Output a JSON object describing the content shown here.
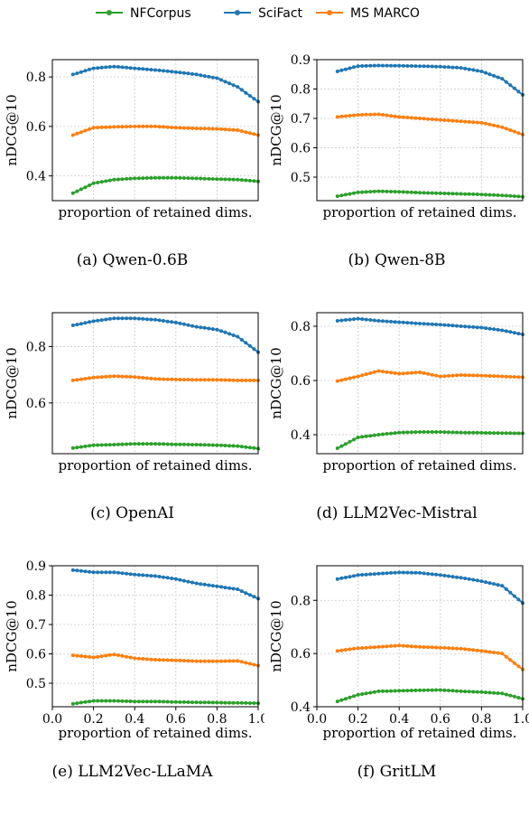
{
  "legend": [
    {
      "name": "NFCorpus",
      "color": "#2ca02c"
    },
    {
      "name": "SciFact",
      "color": "#1f77b4"
    },
    {
      "name": "MS MARCO",
      "color": "#ff7f0e"
    }
  ],
  "chart_data": [
    {
      "type": "line",
      "caption": "(a) Qwen-0.6B",
      "xlabel": "proportion of retained dims.",
      "ylabel": "nDCG@10",
      "xlim": [
        0.0,
        1.0
      ],
      "ylim": [
        0.3,
        0.87
      ],
      "yticks": [
        0.4,
        0.6,
        0.8
      ],
      "ytick_labels": [
        "0.4",
        "0.6",
        "0.8"
      ],
      "xticks": [],
      "grid": true,
      "x": [
        0.1,
        0.2,
        0.3,
        0.4,
        0.5,
        0.6,
        0.7,
        0.8,
        0.9,
        1.0
      ],
      "series": [
        {
          "name": "NFCorpus",
          "values": [
            0.33,
            0.37,
            0.385,
            0.39,
            0.392,
            0.392,
            0.39,
            0.387,
            0.385,
            0.378
          ]
        },
        {
          "name": "SciFact",
          "values": [
            0.81,
            0.835,
            0.842,
            0.835,
            0.828,
            0.82,
            0.81,
            0.795,
            0.76,
            0.7
          ]
        },
        {
          "name": "MS MARCO",
          "values": [
            0.565,
            0.595,
            0.598,
            0.6,
            0.6,
            0.595,
            0.592,
            0.59,
            0.585,
            0.565
          ]
        }
      ]
    },
    {
      "type": "line",
      "caption": "(b) Qwen-8B",
      "xlabel": "proportion of retained dims.",
      "ylabel": "nDCG@10",
      "xlim": [
        0.0,
        1.0
      ],
      "ylim": [
        0.42,
        0.9
      ],
      "yticks": [
        0.5,
        0.6,
        0.7,
        0.8,
        0.9
      ],
      "ytick_labels": [
        "0.5",
        "0.6",
        "0.7",
        "0.8",
        "0.9"
      ],
      "xticks": [],
      "grid": true,
      "x": [
        0.1,
        0.2,
        0.3,
        0.4,
        0.5,
        0.6,
        0.7,
        0.8,
        0.9,
        1.0
      ],
      "series": [
        {
          "name": "NFCorpus",
          "values": [
            0.435,
            0.448,
            0.452,
            0.45,
            0.447,
            0.445,
            0.443,
            0.441,
            0.438,
            0.433
          ]
        },
        {
          "name": "SciFact",
          "values": [
            0.86,
            0.878,
            0.88,
            0.879,
            0.878,
            0.876,
            0.872,
            0.86,
            0.835,
            0.78
          ]
        },
        {
          "name": "MS MARCO",
          "values": [
            0.705,
            0.712,
            0.714,
            0.705,
            0.7,
            0.695,
            0.69,
            0.685,
            0.67,
            0.645
          ]
        }
      ]
    },
    {
      "type": "line",
      "caption": "(c) OpenAI",
      "xlabel": "proportion of retained dims.",
      "ylabel": "nDCG@10",
      "xlim": [
        0.0,
        1.0
      ],
      "ylim": [
        0.42,
        0.92
      ],
      "yticks": [
        0.6,
        0.8
      ],
      "ytick_labels": [
        "0.6",
        "0.8"
      ],
      "xticks": [],
      "grid": true,
      "x": [
        0.1,
        0.2,
        0.3,
        0.4,
        0.5,
        0.6,
        0.7,
        0.8,
        0.9,
        1.0
      ],
      "series": [
        {
          "name": "NFCorpus",
          "values": [
            0.44,
            0.45,
            0.452,
            0.455,
            0.455,
            0.453,
            0.452,
            0.45,
            0.447,
            0.438
          ]
        },
        {
          "name": "SciFact",
          "values": [
            0.875,
            0.89,
            0.9,
            0.9,
            0.895,
            0.885,
            0.87,
            0.86,
            0.835,
            0.78
          ]
        },
        {
          "name": "MS MARCO",
          "values": [
            0.68,
            0.69,
            0.695,
            0.692,
            0.685,
            0.683,
            0.682,
            0.682,
            0.68,
            0.68
          ]
        }
      ]
    },
    {
      "type": "line",
      "caption": "(d) LLM2Vec-Mistral",
      "xlabel": "proportion of retained dims.",
      "ylabel": "nDCG@10",
      "xlim": [
        0.0,
        1.0
      ],
      "ylim": [
        0.33,
        0.85
      ],
      "yticks": [
        0.4,
        0.6,
        0.8
      ],
      "ytick_labels": [
        "0.4",
        "0.6",
        "0.8"
      ],
      "xticks": [],
      "grid": true,
      "x": [
        0.1,
        0.2,
        0.3,
        0.4,
        0.5,
        0.6,
        0.7,
        0.8,
        0.9,
        1.0
      ],
      "series": [
        {
          "name": "NFCorpus",
          "values": [
            0.35,
            0.39,
            0.4,
            0.408,
            0.41,
            0.41,
            0.408,
            0.407,
            0.406,
            0.405
          ]
        },
        {
          "name": "SciFact",
          "values": [
            0.82,
            0.828,
            0.82,
            0.815,
            0.81,
            0.806,
            0.8,
            0.795,
            0.785,
            0.77
          ]
        },
        {
          "name": "MS MARCO",
          "values": [
            0.598,
            0.615,
            0.635,
            0.625,
            0.63,
            0.615,
            0.62,
            0.618,
            0.615,
            0.612
          ]
        }
      ]
    },
    {
      "type": "line",
      "caption": "(e) LLM2Vec-LLaMA",
      "xlabel": "proportion of retained dims.",
      "ylabel": "nDCG@10",
      "xlim": [
        0.0,
        1.0
      ],
      "ylim": [
        0.42,
        0.9
      ],
      "yticks": [
        0.5,
        0.6,
        0.7,
        0.8,
        0.9
      ],
      "ytick_labels": [
        "0.5",
        "0.6",
        "0.7",
        "0.8",
        "0.9"
      ],
      "xticks": [
        0.0,
        0.2,
        0.4,
        0.6,
        0.8,
        1.0
      ],
      "xtick_labels": [
        "0.0",
        "0.2",
        "0.4",
        "0.6",
        "0.8",
        "1.0"
      ],
      "grid": true,
      "x": [
        0.1,
        0.2,
        0.3,
        0.4,
        0.5,
        0.6,
        0.7,
        0.8,
        0.9,
        1.0
      ],
      "series": [
        {
          "name": "NFCorpus",
          "values": [
            0.43,
            0.44,
            0.44,
            0.438,
            0.438,
            0.436,
            0.435,
            0.434,
            0.433,
            0.432
          ]
        },
        {
          "name": "SciFact",
          "values": [
            0.885,
            0.878,
            0.878,
            0.87,
            0.865,
            0.855,
            0.84,
            0.83,
            0.82,
            0.788
          ]
        },
        {
          "name": "MS MARCO",
          "values": [
            0.595,
            0.588,
            0.598,
            0.585,
            0.58,
            0.578,
            0.575,
            0.575,
            0.576,
            0.56
          ]
        }
      ]
    },
    {
      "type": "line",
      "caption": "(f) GritLM",
      "xlabel": "proportion of retained dims.",
      "ylabel": "nDCG@10",
      "xlim": [
        0.0,
        1.0
      ],
      "ylim": [
        0.4,
        0.93
      ],
      "yticks": [
        0.4,
        0.6,
        0.8
      ],
      "ytick_labels": [
        "0.4",
        "0.6",
        "0.8"
      ],
      "xticks": [
        0.0,
        0.2,
        0.4,
        0.6,
        0.8,
        1.0
      ],
      "xtick_labels": [
        "0.0",
        "0.2",
        "0.4",
        "0.6",
        "0.8",
        "1.0"
      ],
      "grid": true,
      "x": [
        0.1,
        0.2,
        0.3,
        0.4,
        0.5,
        0.6,
        0.7,
        0.8,
        0.9,
        1.0
      ],
      "series": [
        {
          "name": "NFCorpus",
          "values": [
            0.42,
            0.445,
            0.458,
            0.46,
            0.462,
            0.463,
            0.458,
            0.455,
            0.45,
            0.43
          ]
        },
        {
          "name": "SciFact",
          "values": [
            0.88,
            0.895,
            0.9,
            0.905,
            0.903,
            0.895,
            0.885,
            0.872,
            0.855,
            0.79
          ]
        },
        {
          "name": "MS MARCO",
          "values": [
            0.61,
            0.62,
            0.625,
            0.63,
            0.625,
            0.622,
            0.618,
            0.61,
            0.6,
            0.54
          ]
        }
      ]
    }
  ]
}
